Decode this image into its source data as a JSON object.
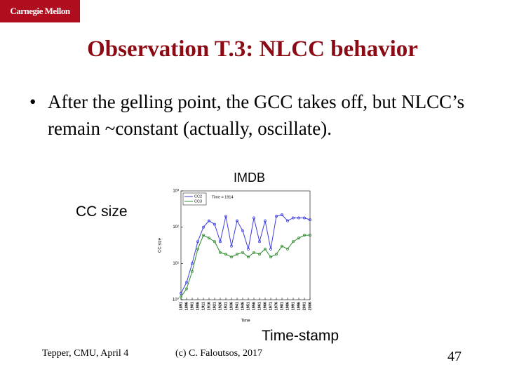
{
  "header": {
    "logo": "Carnegie Mellon",
    "title": "Observation T.3: NLCC behavior"
  },
  "bullets": [
    "After the gelling point, the GCC takes off, but NLCC’s remain ~constant (actually, oscillate)."
  ],
  "chart_data": {
    "type": "line",
    "title": "IMDB",
    "ylabel": "CC size",
    "xlabel": "Time-stamp",
    "ylabel_inner": "CC size",
    "xlabel_inner": "Time",
    "annotation": "Time = 1914",
    "x": [
      1891,
      1896,
      1901,
      1906,
      1911,
      1916,
      1921,
      1926,
      1931,
      1936,
      1941,
      1946,
      1951,
      1956,
      1961,
      1966,
      1971,
      1976,
      1981,
      1986,
      1991,
      1996,
      2001,
      2006
    ],
    "series": [
      {
        "name": "CC2",
        "color": "#3a3adf",
        "values": [
          1.5,
          3,
          10,
          40,
          100,
          150,
          120,
          40,
          200,
          30,
          150,
          80,
          25,
          180,
          40,
          150,
          25,
          200,
          220,
          150,
          180,
          180,
          180,
          160
        ]
      },
      {
        "name": "CC3",
        "color": "#2e8b2e",
        "values": [
          1.2,
          2,
          6,
          25,
          60,
          50,
          40,
          20,
          18,
          15,
          18,
          20,
          15,
          20,
          18,
          25,
          15,
          18,
          30,
          25,
          40,
          50,
          60,
          60
        ]
      }
    ],
    "xlim": [
      1891,
      2006
    ],
    "xticks": [
      1891,
      1896,
      1901,
      1906,
      1911,
      1916,
      1921,
      1926,
      1931,
      1936,
      1941,
      1946,
      1951,
      1956,
      1961,
      1966,
      1971,
      1976,
      1981,
      1986,
      1991,
      1996,
      2001,
      2006
    ],
    "ylim": [
      1,
      1000
    ],
    "log_y": true,
    "yticks": [
      {
        "value": 1,
        "label": "10⁰"
      },
      {
        "value": 10,
        "label": "10¹"
      },
      {
        "value": 100,
        "label": "10²"
      },
      {
        "value": 1000,
        "label": "10³"
      }
    ],
    "legend": "upper left"
  },
  "footer": {
    "left": "Tepper, CMU, April 4",
    "center": "(c) C. Faloutsos, 2017",
    "page": 47
  }
}
